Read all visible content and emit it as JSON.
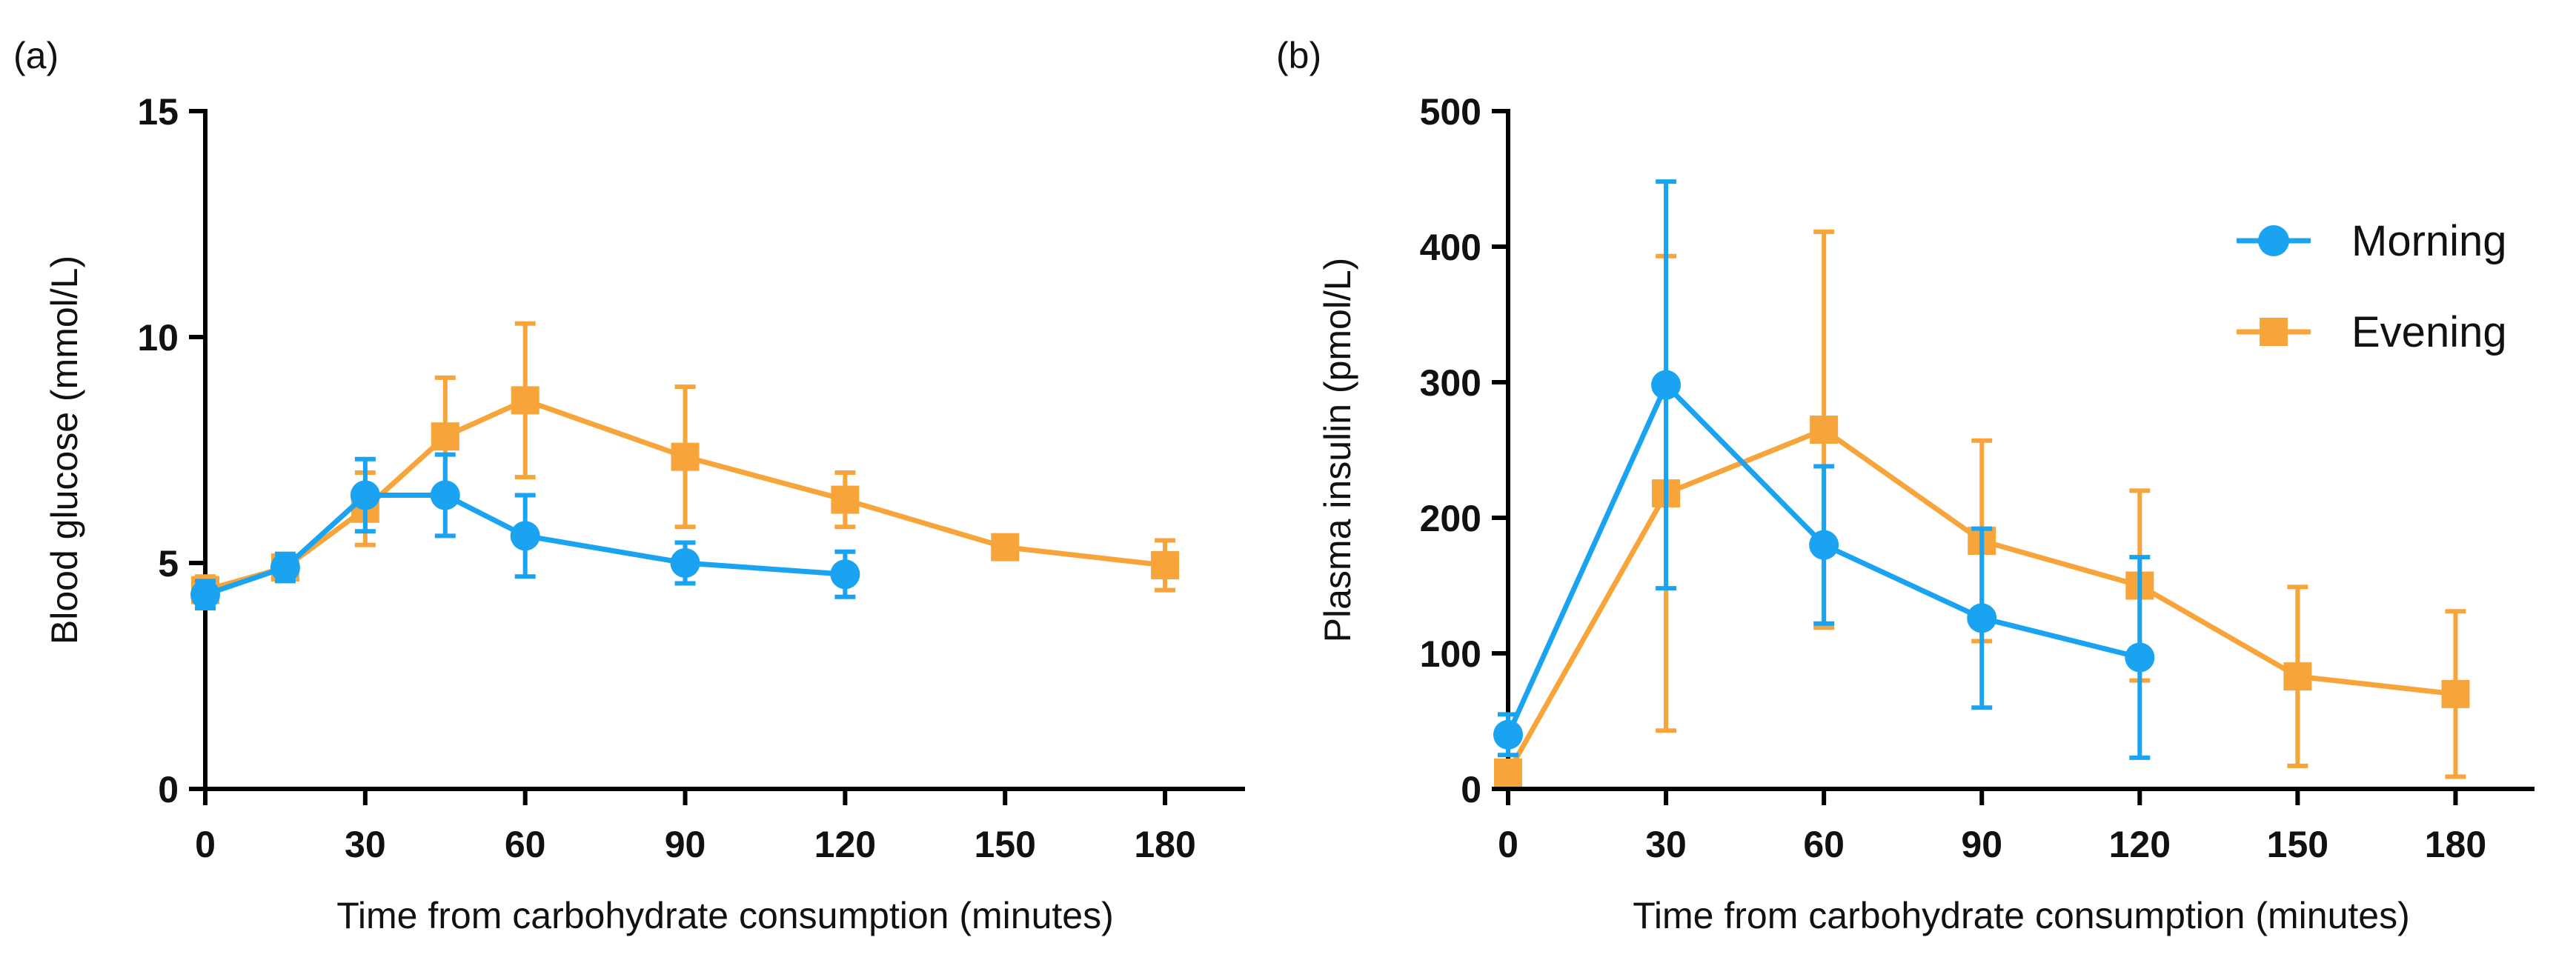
{
  "colors": {
    "morning": "#1aa3f0",
    "evening": "#f7a53a",
    "axis": "#000000"
  },
  "chart_data": [
    {
      "type": "line",
      "panel_label": "(a)",
      "title": "",
      "xlabel": "Time from carbohydrate consumption (minutes)",
      "ylabel": "Blood glucose (mmol/L)",
      "xlim": [
        0,
        195
      ],
      "ylim": [
        0,
        15
      ],
      "xticks": [
        0,
        30,
        60,
        90,
        120,
        150,
        180
      ],
      "yticks": [
        0,
        5,
        10,
        15
      ],
      "legend": null,
      "series": [
        {
          "name": "Morning",
          "marker": "circle",
          "color": "#1aa3f0",
          "x": [
            0,
            15,
            30,
            45,
            60,
            90,
            120
          ],
          "y": [
            4.3,
            4.9,
            6.5,
            6.5,
            5.6,
            5.0,
            4.75
          ],
          "err": [
            0.3,
            0.3,
            0.8,
            0.9,
            0.9,
            0.45,
            0.5
          ]
        },
        {
          "name": "Evening",
          "marker": "square",
          "color": "#f7a53a",
          "x": [
            0,
            15,
            30,
            45,
            60,
            90,
            120,
            150,
            180
          ],
          "y": [
            4.4,
            4.9,
            6.2,
            7.8,
            8.6,
            7.35,
            6.4,
            5.35,
            4.95
          ],
          "err": [
            0.3,
            0.3,
            0.8,
            1.3,
            1.7,
            1.55,
            0.6,
            0.1,
            0.55
          ]
        }
      ]
    },
    {
      "type": "line",
      "panel_label": "(b)",
      "title": "",
      "xlabel": "Time from carbohydrate consumption (minutes)",
      "ylabel": "Plasma insulin (pmol/L)",
      "xlim": [
        0,
        195
      ],
      "ylim": [
        0,
        500
      ],
      "xticks": [
        0,
        30,
        60,
        90,
        120,
        150,
        180
      ],
      "yticks": [
        0,
        100,
        200,
        300,
        400,
        500
      ],
      "legend": {
        "position": "top-right",
        "entries": [
          "Morning",
          "Evening"
        ]
      },
      "series": [
        {
          "name": "Morning",
          "marker": "circle",
          "color": "#1aa3f0",
          "x": [
            0,
            30,
            60,
            90,
            120
          ],
          "y": [
            40,
            298,
            180,
            126,
            97
          ],
          "err": [
            15,
            150,
            58,
            66,
            74
          ]
        },
        {
          "name": "Evening",
          "marker": "square",
          "color": "#f7a53a",
          "x": [
            0,
            30,
            60,
            90,
            120,
            150,
            180
          ],
          "y": [
            12,
            218,
            265,
            183,
            150,
            83,
            70
          ],
          "err": [
            8,
            175,
            146,
            74,
            70,
            66,
            61
          ]
        }
      ]
    }
  ]
}
